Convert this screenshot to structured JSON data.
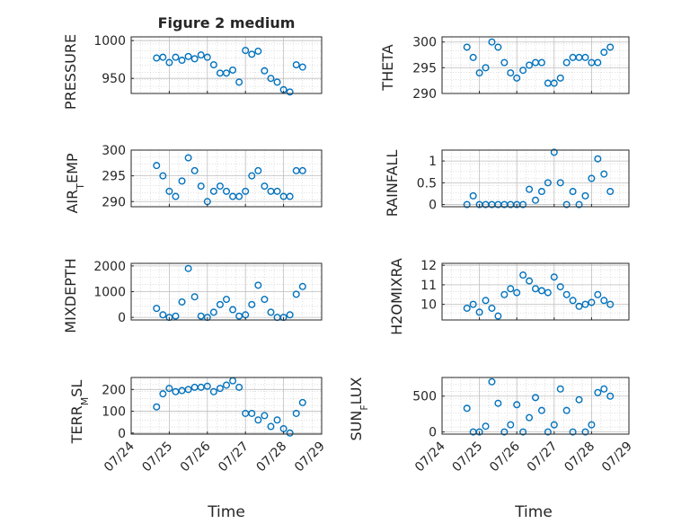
{
  "figure": {
    "title": "Figure 2 medium",
    "x_axis_label": "Time",
    "x_tick_labels": [
      "07/24",
      "07/25",
      "07/26",
      "07/27",
      "07/28",
      "07/29"
    ],
    "marker_color": "#0072BD",
    "grid_color": "#bfbfbf"
  },
  "chart_data": [
    {
      "type": "scatter",
      "title": "Figure 2 medium",
      "ylabel": "PRESSURE",
      "ylim": [
        930,
        1005
      ],
      "yticks": [
        950,
        1000
      ],
      "x": [
        "07/24 16:00",
        "07/24 20:00",
        "07/25 00:00",
        "07/25 04:00",
        "07/25 08:00",
        "07/25 12:00",
        "07/25 16:00",
        "07/25 20:00",
        "07/26 00:00",
        "07/26 04:00",
        "07/26 08:00",
        "07/26 12:00",
        "07/26 16:00",
        "07/26 20:00",
        "07/27 00:00",
        "07/27 04:00",
        "07/27 08:00",
        "07/27 12:00",
        "07/27 16:00",
        "07/27 20:00",
        "07/28 00:00",
        "07/28 04:00",
        "07/28 08:00",
        "07/28 12:00"
      ],
      "y": [
        977,
        978,
        971,
        978,
        974,
        979,
        976,
        981,
        978,
        968,
        957,
        957,
        961,
        945,
        987,
        982,
        986,
        960,
        950,
        945,
        935,
        932,
        968,
        965
      ],
      "xlabel": "",
      "xlim": [
        "07/24",
        "07/29"
      ],
      "grid": true
    },
    {
      "type": "scatter",
      "ylabel": "THETA",
      "ylim": [
        290,
        301
      ],
      "yticks": [
        290,
        295,
        300
      ],
      "x": [
        "07/24 16:00",
        "07/24 20:00",
        "07/25 00:00",
        "07/25 04:00",
        "07/25 08:00",
        "07/25 12:00",
        "07/25 16:00",
        "07/25 20:00",
        "07/26 00:00",
        "07/26 04:00",
        "07/26 08:00",
        "07/26 12:00",
        "07/26 16:00",
        "07/26 20:00",
        "07/27 00:00",
        "07/27 04:00",
        "07/27 08:00",
        "07/27 12:00",
        "07/27 16:00",
        "07/27 20:00",
        "07/28 00:00",
        "07/28 04:00",
        "07/28 08:00",
        "07/28 12:00"
      ],
      "y": [
        299,
        297,
        294,
        295,
        300,
        299,
        296,
        294,
        293,
        294.5,
        295.5,
        296,
        296,
        292,
        292,
        293,
        296,
        297,
        297,
        297,
        296,
        296,
        298,
        299
      ],
      "xlabel": "",
      "xlim": [
        "07/24",
        "07/29"
      ],
      "grid": true
    },
    {
      "type": "scatter",
      "ylabel": "AIR_TEMP",
      "ylim": [
        289,
        300
      ],
      "yticks": [
        290,
        295,
        300
      ],
      "x": [
        "07/24 16:00",
        "07/24 20:00",
        "07/25 00:00",
        "07/25 04:00",
        "07/25 08:00",
        "07/25 12:00",
        "07/25 16:00",
        "07/25 20:00",
        "07/26 00:00",
        "07/26 04:00",
        "07/26 08:00",
        "07/26 12:00",
        "07/26 16:00",
        "07/26 20:00",
        "07/27 00:00",
        "07/27 04:00",
        "07/27 08:00",
        "07/27 12:00",
        "07/27 16:00",
        "07/27 20:00",
        "07/28 00:00",
        "07/28 04:00",
        "07/28 08:00",
        "07/28 12:00"
      ],
      "y": [
        297,
        295,
        292,
        291,
        294,
        298.5,
        296,
        293,
        290,
        292,
        293,
        292,
        291,
        291,
        292,
        295,
        296,
        293,
        292,
        292,
        291,
        291,
        296,
        296
      ],
      "xlabel": "",
      "xlim": [
        "07/24",
        "07/29"
      ],
      "grid": true
    },
    {
      "type": "scatter",
      "ylabel": "RAINFALL",
      "ylim": [
        -0.05,
        1.25
      ],
      "yticks": [
        0,
        0.5,
        1
      ],
      "x": [
        "07/24 16:00",
        "07/24 20:00",
        "07/25 00:00",
        "07/25 04:00",
        "07/25 08:00",
        "07/25 12:00",
        "07/25 16:00",
        "07/25 20:00",
        "07/26 00:00",
        "07/26 04:00",
        "07/26 08:00",
        "07/26 12:00",
        "07/26 16:00",
        "07/26 20:00",
        "07/27 00:00",
        "07/27 04:00",
        "07/27 08:00",
        "07/27 12:00",
        "07/27 16:00",
        "07/27 20:00",
        "07/28 00:00",
        "07/28 04:00",
        "07/28 08:00",
        "07/28 12:00"
      ],
      "y": [
        0,
        0.2,
        0,
        0,
        0,
        0,
        0,
        0,
        0,
        0,
        0.35,
        0.1,
        0.3,
        0.5,
        1.2,
        0.5,
        0,
        0.3,
        0,
        0.2,
        0.6,
        1.05,
        0.7,
        0.3
      ],
      "xlabel": "",
      "xlim": [
        "07/24",
        "07/29"
      ],
      "grid": true
    },
    {
      "type": "scatter",
      "ylabel": "MIXDEPTH",
      "ylim": [
        -100,
        2100
      ],
      "yticks": [
        0,
        1000,
        2000
      ],
      "x": [
        "07/24 16:00",
        "07/24 20:00",
        "07/25 00:00",
        "07/25 04:00",
        "07/25 08:00",
        "07/25 12:00",
        "07/25 16:00",
        "07/25 20:00",
        "07/26 00:00",
        "07/26 04:00",
        "07/26 08:00",
        "07/26 12:00",
        "07/26 16:00",
        "07/26 20:00",
        "07/27 00:00",
        "07/27 04:00",
        "07/27 08:00",
        "07/27 12:00",
        "07/27 16:00",
        "07/27 20:00",
        "07/28 00:00",
        "07/28 04:00",
        "07/28 08:00",
        "07/28 12:00"
      ],
      "y": [
        350,
        100,
        0,
        50,
        600,
        1900,
        800,
        50,
        0,
        200,
        500,
        700,
        300,
        50,
        100,
        500,
        1250,
        700,
        200,
        0,
        0,
        100,
        900,
        1200
      ],
      "xlabel": "",
      "xlim": [
        "07/24",
        "07/29"
      ],
      "grid": true
    },
    {
      "type": "scatter",
      "ylabel": "H2OMIXRA",
      "ylim": [
        9.2,
        12.1
      ],
      "yticks": [
        10,
        11,
        12
      ],
      "x": [
        "07/24 16:00",
        "07/24 20:00",
        "07/25 00:00",
        "07/25 04:00",
        "07/25 08:00",
        "07/25 12:00",
        "07/25 16:00",
        "07/25 20:00",
        "07/26 00:00",
        "07/26 04:00",
        "07/26 08:00",
        "07/26 12:00",
        "07/26 16:00",
        "07/26 20:00",
        "07/27 00:00",
        "07/27 04:00",
        "07/27 08:00",
        "07/27 12:00",
        "07/27 16:00",
        "07/27 20:00",
        "07/28 00:00",
        "07/28 04:00",
        "07/28 08:00",
        "07/28 12:00"
      ],
      "y": [
        9.8,
        10,
        9.6,
        10.2,
        9.8,
        9.4,
        10.5,
        10.8,
        10.6,
        11.5,
        11.2,
        10.8,
        10.7,
        10.6,
        11.4,
        10.9,
        10.5,
        10.2,
        9.9,
        10,
        10.1,
        10.5,
        10.2,
        10
      ],
      "xlabel": "",
      "xlim": [
        "07/24",
        "07/29"
      ],
      "grid": true
    },
    {
      "type": "scatter",
      "ylabel": "TERR_MSL",
      "ylim": [
        -5,
        255
      ],
      "yticks": [
        0,
        100,
        200
      ],
      "x": [
        "07/24 16:00",
        "07/24 20:00",
        "07/25 00:00",
        "07/25 04:00",
        "07/25 08:00",
        "07/25 12:00",
        "07/25 16:00",
        "07/25 20:00",
        "07/26 00:00",
        "07/26 04:00",
        "07/26 08:00",
        "07/26 12:00",
        "07/26 16:00",
        "07/26 20:00",
        "07/27 00:00",
        "07/27 04:00",
        "07/27 08:00",
        "07/27 12:00",
        "07/27 16:00",
        "07/27 20:00",
        "07/28 00:00",
        "07/28 04:00",
        "07/28 08:00",
        "07/28 12:00"
      ],
      "y": [
        120,
        180,
        205,
        190,
        195,
        200,
        210,
        210,
        215,
        190,
        205,
        220,
        240,
        210,
        90,
        90,
        60,
        80,
        30,
        60,
        20,
        0,
        90,
        140
      ],
      "xlabel": "Time",
      "xlim": [
        "07/24",
        "07/29"
      ],
      "grid": true
    },
    {
      "type": "scatter",
      "ylabel": "SUN_FLUX",
      "ylim": [
        -30,
        760
      ],
      "yticks": [
        0,
        500
      ],
      "x": [
        "07/24 16:00",
        "07/24 20:00",
        "07/25 00:00",
        "07/25 04:00",
        "07/25 08:00",
        "07/25 12:00",
        "07/25 16:00",
        "07/25 20:00",
        "07/26 00:00",
        "07/26 04:00",
        "07/26 08:00",
        "07/26 12:00",
        "07/26 16:00",
        "07/26 20:00",
        "07/27 00:00",
        "07/27 04:00",
        "07/27 08:00",
        "07/27 12:00",
        "07/27 16:00",
        "07/27 20:00",
        "07/28 00:00",
        "07/28 04:00",
        "07/28 08:00",
        "07/28 12:00"
      ],
      "y": [
        330,
        0,
        0,
        80,
        700,
        400,
        0,
        100,
        380,
        0,
        200,
        480,
        300,
        0,
        100,
        600,
        300,
        0,
        450,
        0,
        100,
        550,
        600,
        500
      ],
      "xlabel": "Time",
      "xlim": [
        "07/24",
        "07/29"
      ],
      "grid": true
    }
  ]
}
